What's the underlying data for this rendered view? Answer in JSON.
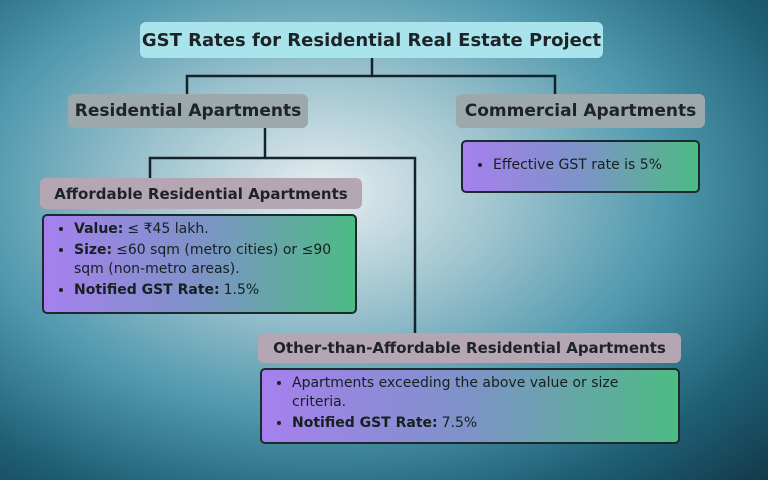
{
  "title": "GST Rates for Residential Real Estate Project",
  "branches": [
    {
      "label": "Residential Apartments",
      "children": [
        {
          "label": "Affordable Residential Apartments",
          "items": [
            {
              "label": "Value:",
              "text": "≤ ₹45 lakh."
            },
            {
              "label": "Size:",
              "text": "≤60 sqm (metro cities) or ≤90 sqm (non-metro areas)."
            },
            {
              "label": "Notified GST Rate:",
              "text": "1.5%"
            }
          ]
        },
        {
          "label": "Other-than-Affordable Residential Apartments",
          "items": [
            {
              "text": "Apartments exceeding the above value or size criteria."
            },
            {
              "label": "Notified GST Rate:",
              "text": "7.5%"
            }
          ]
        }
      ]
    },
    {
      "label": "Commercial Apartments",
      "items": [
        {
          "text": "Effective GST rate is 5%"
        }
      ]
    }
  ]
}
